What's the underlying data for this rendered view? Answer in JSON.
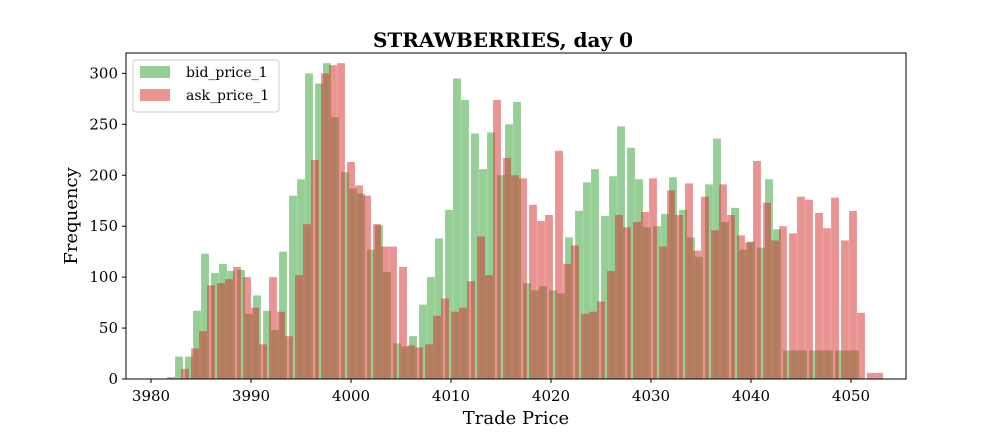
{
  "chart_data": {
    "type": "bar",
    "title": "STRAWBERRIES, day 0",
    "xlabel": "Trade Price",
    "ylabel": "Frequency",
    "xlim": [
      3977.5,
      4055.5
    ],
    "ylim": [
      0,
      320
    ],
    "xticks": [
      3980,
      3990,
      4000,
      4010,
      4020,
      4030,
      4040,
      4050
    ],
    "yticks": [
      0,
      50,
      100,
      150,
      200,
      250,
      300
    ],
    "legend_position": "upper-left",
    "bin_width": 0.78,
    "series": [
      {
        "name": "bid_price_1",
        "color": "#2ca02c",
        "alpha": 0.5,
        "x": [
          3982,
          3982.8,
          3983.8,
          3984.6,
          3985.4,
          3986.4,
          3987.2,
          3988,
          3989,
          3989.8,
          3990.6,
          3991.6,
          3992.4,
          3993.2,
          3994.2,
          3995,
          3995.8,
          3996.8,
          3997.6,
          3998.4,
          3999.4,
          4000.2,
          4001,
          4002,
          4002.8,
          4003.6,
          4004.6,
          4005.4,
          4006.2,
          4007.2,
          4008,
          4008.8,
          4009.8,
          4010.6,
          4011.4,
          4012.4,
          4013.2,
          4014,
          4015,
          4015.8,
          4016.6,
          4017.6,
          4018.4,
          4019.2,
          4020.2,
          4021,
          4021.8,
          4022.8,
          4023.6,
          4024.4,
          4025.4,
          4026.2,
          4027,
          4028,
          4028.8,
          4029.6,
          4030.6,
          4031.4,
          4032.2,
          4033.2,
          4034,
          4034.8,
          4035.8,
          4036.6,
          4037.4,
          4038.4,
          4039.2,
          4040,
          4041,
          4041.8,
          4042.6,
          4043.6,
          4044.4,
          4045.2,
          4046.2,
          4047,
          4047.8,
          4048.8,
          4049.6,
          4050.4
        ],
        "values": [
          2,
          22,
          22,
          67,
          123,
          104,
          113,
          106,
          107,
          64,
          82,
          67,
          48,
          125,
          180,
          196,
          300,
          290,
          310,
          257,
          203,
          187,
          182,
          127,
          151,
          105,
          35,
          32,
          42,
          73,
          100,
          138,
          166,
          295,
          274,
          241,
          206,
          242,
          200,
          250,
          272,
          94,
          87,
          91,
          87,
          84,
          139,
          165,
          193,
          206,
          160,
          199,
          248,
          227,
          196,
          149,
          150,
          162,
          198,
          166,
          139,
          120,
          191,
          236,
          154,
          168,
          127,
          135,
          129,
          196,
          147,
          28,
          28,
          28,
          28,
          28,
          28,
          28,
          28,
          28
        ]
      },
      {
        "name": "ask_price_1",
        "color": "#d62728",
        "alpha": 0.5,
        "x": [
          3983.4,
          3984.4,
          3985.2,
          3986,
          3987,
          3987.8,
          3988.6,
          3989.6,
          3990.4,
          3991.2,
          3992.2,
          3993,
          3993.8,
          3994.8,
          3995.6,
          3996.4,
          3997.4,
          3998.2,
          3999,
          4000,
          4000.8,
          4001.6,
          4002.6,
          4003.4,
          4004.2,
          4005.2,
          4006,
          4006.8,
          4007.8,
          4008.6,
          4009.4,
          4010.4,
          4011.2,
          4012,
          4013,
          4013.8,
          4014.6,
          4015.6,
          4016.4,
          4017.2,
          4018.2,
          4019,
          4019.8,
          4020.8,
          4021.6,
          4022.4,
          4023.4,
          4024.2,
          4025,
          4026,
          4026.8,
          4027.6,
          4028.6,
          4029.4,
          4030.2,
          4031.2,
          4032,
          4032.8,
          4033.8,
          4034.6,
          4035.4,
          4036.4,
          4037.2,
          4038,
          4039,
          4039.8,
          4040.6,
          4041.6,
          4042.4,
          4043.2,
          4044.2,
          4045,
          4045.8,
          4046.8,
          4047.6,
          4048.4,
          4049.4,
          4050.2,
          4051,
          4052,
          4052.8
        ],
        "values": [
          10,
          30,
          47,
          92,
          94,
          98,
          110,
          100,
          70,
          34,
          100,
          66,
          42,
          102,
          152,
          215,
          300,
          308,
          310,
          213,
          190,
          180,
          152,
          130,
          130,
          110,
          33,
          31,
          34,
          62,
          79,
          66,
          70,
          96,
          140,
          102,
          274,
          217,
          200,
          197,
          171,
          155,
          161,
          224,
          113,
          131,
          64,
          66,
          76,
          106,
          161,
          149,
          154,
          164,
          197,
          130,
          185,
          161,
          192,
          126,
          179,
          146,
          191,
          161,
          141,
          134,
          214,
          173,
          136,
          150,
          143,
          179,
          176,
          163,
          148,
          178,
          136,
          165,
          65,
          6,
          6
        ]
      }
    ]
  }
}
